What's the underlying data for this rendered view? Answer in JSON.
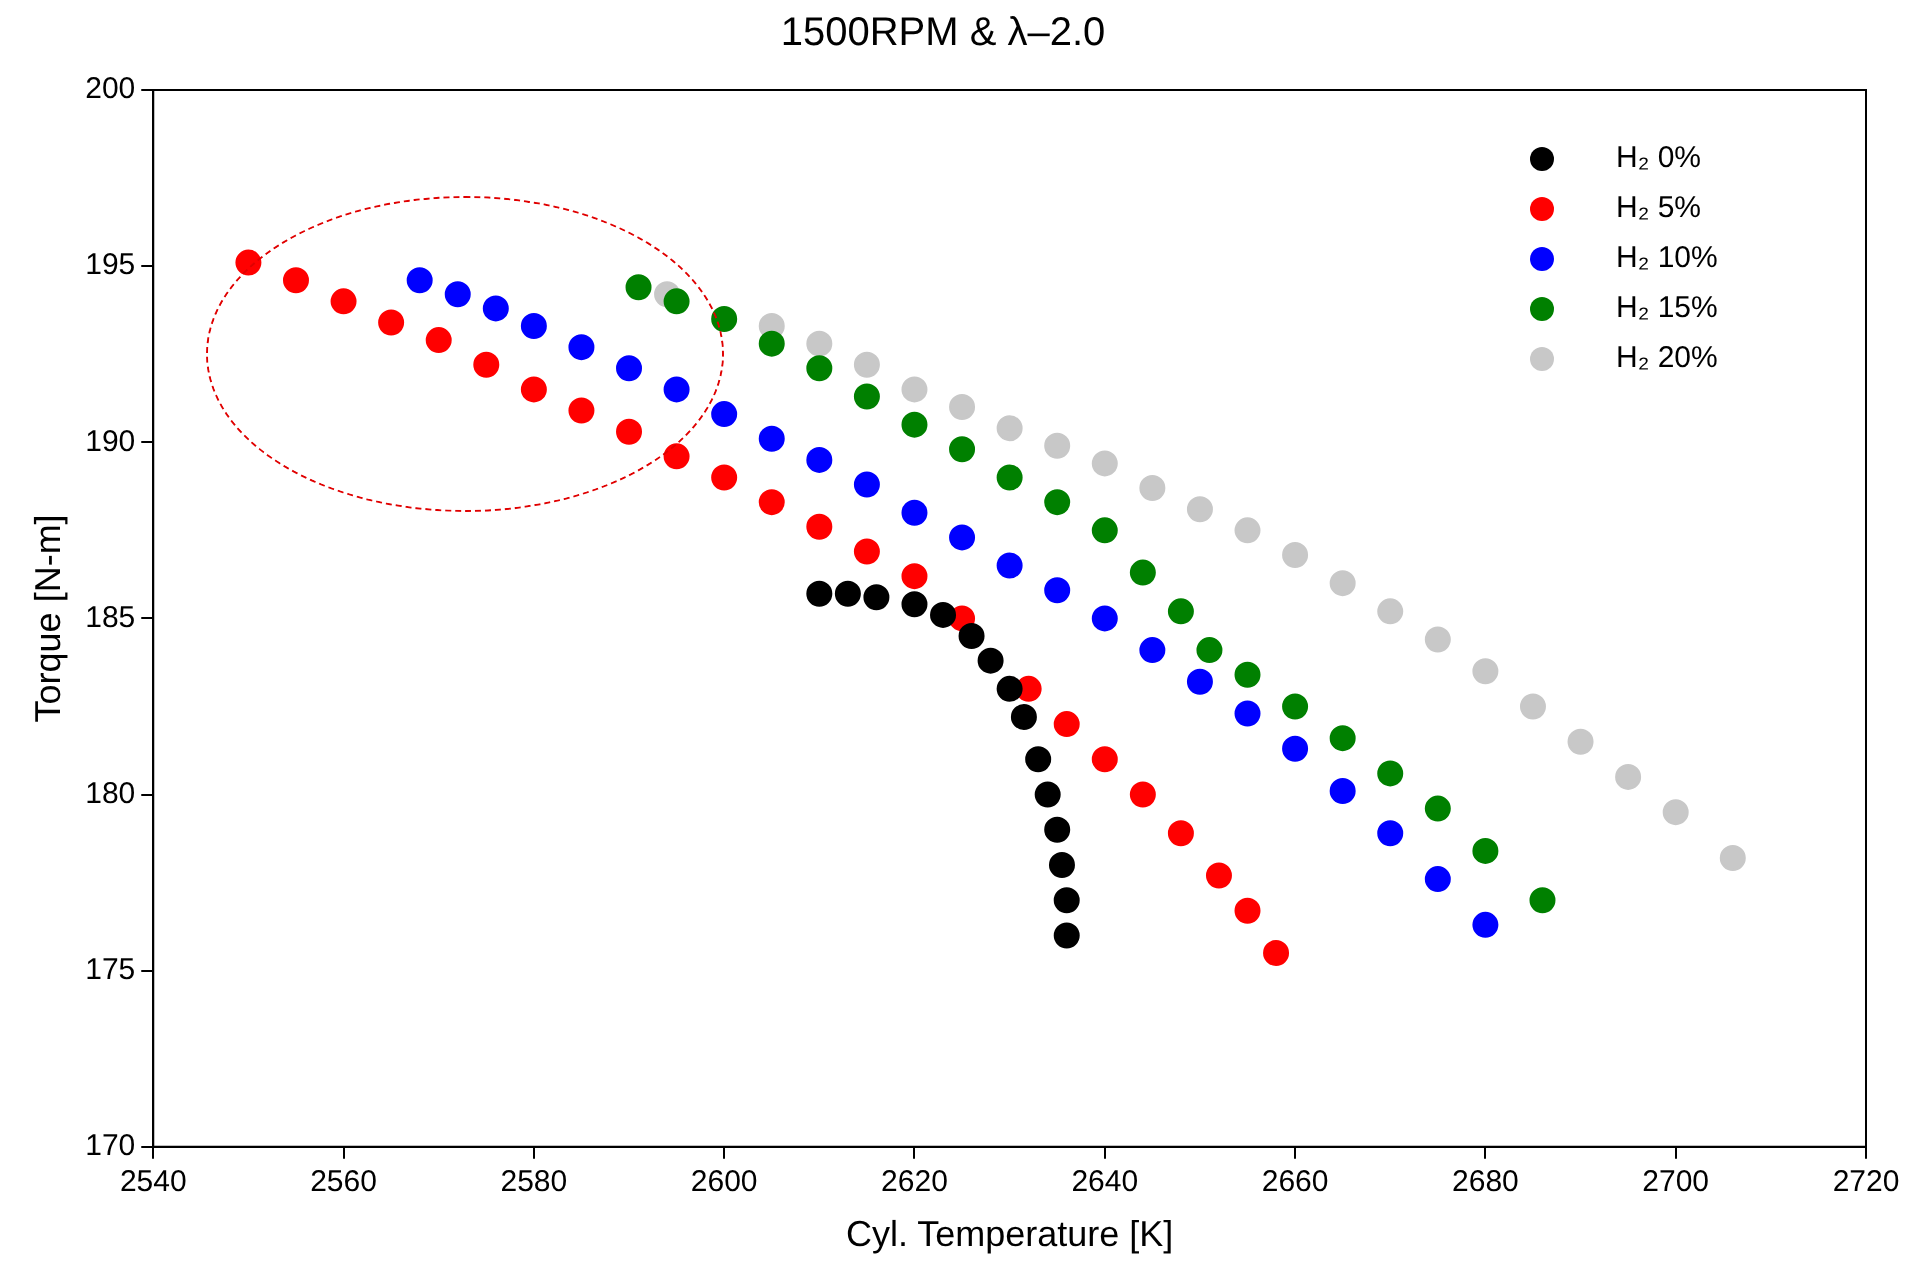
{
  "chart_data": {
    "type": "scatter",
    "title": "1500RPM & λ–2.0",
    "xlabel": "Cyl. Temperature [K]",
    "ylabel": "Torque [N-m]",
    "xlim": [
      2540,
      2720
    ],
    "xticks": [
      2540,
      2560,
      2580,
      2600,
      2620,
      2640,
      2660,
      2680,
      2700,
      2720
    ],
    "ylim": [
      170,
      200
    ],
    "yticks": [
      170,
      175,
      180,
      185,
      190,
      195,
      200
    ],
    "grid": false,
    "legend": "top right",
    "marker": "circle",
    "series": [
      {
        "name": "H₂ 0%",
        "color": "#000000",
        "x": [
          2610,
          2613,
          2616,
          2620,
          2623,
          2626,
          2628,
          2630,
          2631.5,
          2633,
          2634,
          2635,
          2635.5,
          2636,
          2636
        ],
        "values": [
          185.7,
          185.7,
          185.6,
          185.4,
          185.1,
          184.5,
          183.8,
          183,
          182.2,
          181,
          180,
          179,
          178,
          177,
          176
        ]
      },
      {
        "name": "H₂ 5%",
        "color": "#ff0000",
        "x": [
          2550,
          2555,
          2560,
          2565,
          2570,
          2575,
          2580,
          2585,
          2590,
          2595,
          2600,
          2605,
          2610,
          2615,
          2620,
          2625,
          2632,
          2636,
          2640,
          2644,
          2648,
          2652,
          2655,
          2658
        ],
        "values": [
          195.1,
          194.6,
          194,
          193.4,
          192.9,
          192.2,
          191.5,
          190.9,
          190.3,
          189.6,
          189,
          188.3,
          187.6,
          186.9,
          186.2,
          185,
          183,
          182,
          181,
          180,
          178.9,
          177.7,
          176.7,
          175.5
        ]
      },
      {
        "name": "H₂ 10%",
        "color": "#0000ff",
        "x": [
          2568,
          2572,
          2576,
          2580,
          2585,
          2590,
          2595,
          2600,
          2605,
          2610,
          2615,
          2620,
          2625,
          2630,
          2635,
          2640,
          2645,
          2650,
          2655,
          2660,
          2665,
          2670,
          2675,
          2680
        ],
        "values": [
          194.6,
          194.2,
          193.8,
          193.3,
          192.7,
          192.1,
          191.5,
          190.8,
          190.1,
          189.5,
          188.8,
          188,
          187.3,
          186.5,
          185.8,
          185,
          184.1,
          183.2,
          182.3,
          181.3,
          180.1,
          178.9,
          177.6,
          176.3
        ]
      },
      {
        "name": "H₂ 15%",
        "color": "#008000",
        "x": [
          2591,
          2595,
          2600,
          2605,
          2610,
          2615,
          2620,
          2625,
          2630,
          2635,
          2640,
          2644,
          2648,
          2651,
          2655,
          2660,
          2665,
          2670,
          2675,
          2680,
          2686
        ],
        "values": [
          194.4,
          194,
          193.5,
          192.8,
          192.1,
          191.3,
          190.5,
          189.8,
          189,
          188.3,
          187.5,
          186.3,
          185.2,
          184.1,
          183.4,
          182.5,
          181.6,
          180.6,
          179.6,
          178.4,
          177
        ]
      },
      {
        "name": "H₂ 20%",
        "color": "#c8c8c8",
        "x": [
          2594,
          2605,
          2610,
          2615,
          2620,
          2625,
          2630,
          2635,
          2640,
          2645,
          2650,
          2655,
          2660,
          2665,
          2670,
          2675,
          2680,
          2685,
          2690,
          2695,
          2700,
          2706
        ],
        "values": [
          194.2,
          193.3,
          192.8,
          192.2,
          191.5,
          191,
          190.4,
          189.9,
          189.4,
          188.7,
          188.1,
          187.5,
          186.8,
          186,
          185.2,
          184.4,
          183.5,
          182.5,
          181.5,
          180.5,
          179.5,
          178.2
        ]
      }
    ]
  }
}
